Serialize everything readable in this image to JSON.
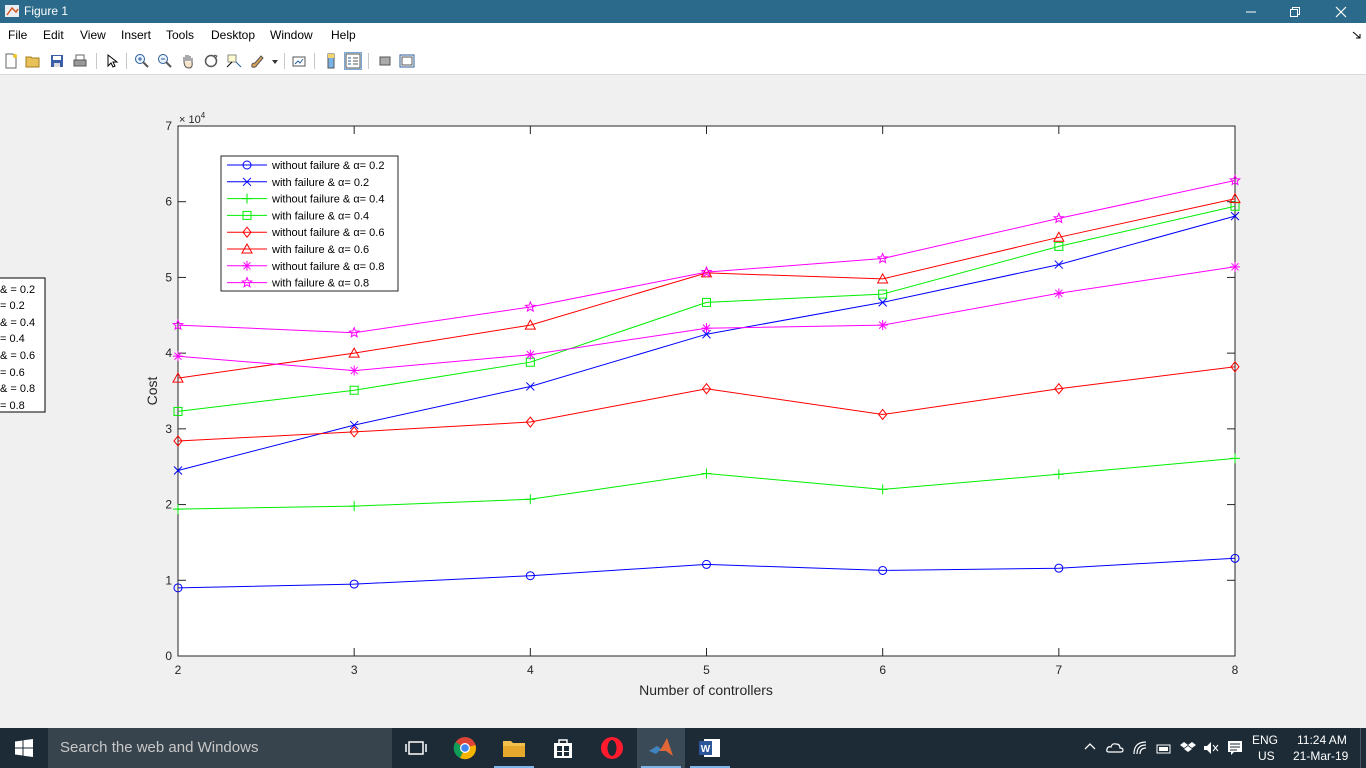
{
  "window": {
    "title": "Figure 1"
  },
  "menu": [
    "File",
    "Edit",
    "View",
    "Insert",
    "Tools",
    "Desktop",
    "Window",
    "Help"
  ],
  "toolbar_icons": [
    "new-figure-icon",
    "open-file-icon",
    "save-icon",
    "print-icon",
    "edit-plot-icon",
    "zoom-in-icon",
    "zoom-out-icon",
    "pan-icon",
    "rotate-3d-icon",
    "data-cursor-icon",
    "brush-icon",
    "link-plot-icon",
    "insert-colorbar-icon",
    "insert-legend-icon",
    "hide-plot-tools-icon",
    "show-plot-tools-icon"
  ],
  "chart_data": {
    "type": "line",
    "xlabel": "Number of controllers",
    "ylabel": "Cost",
    "exponent_label": "× 10",
    "exponent_power": "4",
    "xlim": [
      2,
      8
    ],
    "ylim": [
      0,
      70000
    ],
    "x": [
      2,
      3,
      4,
      5,
      6,
      7,
      8
    ],
    "xticks": [
      "2",
      "3",
      "4",
      "5",
      "6",
      "7",
      "8"
    ],
    "yticks": [
      "0",
      "1",
      "2",
      "3",
      "4",
      "5",
      "6",
      "7"
    ],
    "legend_position": "top-left",
    "series": [
      {
        "name": "without failure & α= 0.2",
        "color": "#0000ff",
        "marker": "circle",
        "values": [
          9000,
          9500,
          10600,
          12100,
          11300,
          11600,
          12900
        ]
      },
      {
        "name": "with failure & α= 0.2",
        "color": "#0000ff",
        "marker": "x",
        "values": [
          24500,
          30500,
          35600,
          42500,
          46700,
          51700,
          58100
        ]
      },
      {
        "name": "without failure & α= 0.4",
        "color": "#00ee00",
        "marker": "plus",
        "values": [
          19400,
          19800,
          20700,
          24100,
          22000,
          24000,
          26100
        ]
      },
      {
        "name": "with failure & α= 0.4",
        "color": "#00ee00",
        "marker": "square",
        "values": [
          32300,
          35100,
          38800,
          46700,
          47800,
          54100,
          59400
        ]
      },
      {
        "name": "without failure & α= 0.6",
        "color": "#ff0000",
        "marker": "diamond",
        "values": [
          28400,
          29600,
          30900,
          35300,
          31900,
          35300,
          38200
        ]
      },
      {
        "name": "with failure & α= 0.6",
        "color": "#ff0000",
        "marker": "triangle",
        "values": [
          36700,
          40000,
          43700,
          50600,
          49800,
          55300,
          60400
        ]
      },
      {
        "name": "without failure & α= 0.8",
        "color": "#ff00ff",
        "marker": "asterisk",
        "values": [
          39600,
          37700,
          39800,
          43300,
          43700,
          47900,
          51400
        ]
      },
      {
        "name": "with failure & α= 0.8",
        "color": "#ff00ff",
        "marker": "pentagram",
        "values": [
          43700,
          42700,
          46100,
          50700,
          52500,
          57800,
          62800
        ]
      }
    ]
  },
  "left_legend_fragment": [
    "&   = 0.2",
    "= 0.2",
    "&   = 0.4",
    "= 0.4",
    "&   = 0.6",
    "= 0.6",
    "&   = 0.8",
    "= 0.8"
  ],
  "taskbar": {
    "search_placeholder": "Search the web and Windows",
    "apps": [
      "task-view-icon",
      "chrome-icon",
      "file-explorer-icon",
      "store-icon",
      "opera-icon",
      "matlab-icon",
      "word-icon"
    ],
    "lang": "ENG",
    "region": "US",
    "time": "11:24 AM",
    "date": "21-Mar-19"
  }
}
